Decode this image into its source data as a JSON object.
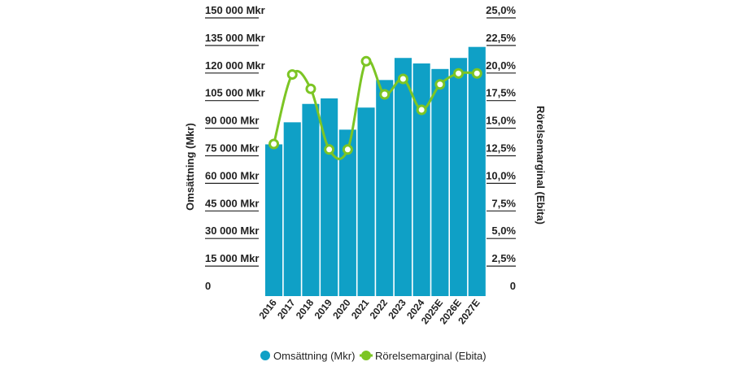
{
  "chart_data": {
    "type": "bar",
    "title": "",
    "categories": [
      "2016",
      "2017",
      "2018",
      "2019",
      "2020",
      "2021",
      "2022",
      "2023",
      "2024",
      "2025E",
      "2026E",
      "2027E"
    ],
    "series": [
      {
        "name": "Omsättning (Mkr)",
        "type": "bar",
        "axis": "left",
        "color": "#0fa0c6",
        "values": [
          79000,
          91000,
          101000,
          104000,
          87000,
          99000,
          114000,
          126000,
          123000,
          120000,
          126000,
          132000
        ]
      },
      {
        "name": "Rörelsemarginal (Ebita)",
        "type": "line",
        "axis": "right",
        "color": "#7cc524",
        "values": [
          13.2,
          19.5,
          18.2,
          12.7,
          12.7,
          20.7,
          17.7,
          19.1,
          16.3,
          18.6,
          19.6,
          19.6
        ]
      }
    ],
    "ylabel": "Omsättning (Mkr)",
    "y2label": "Rörelsemarginal (Ebita)",
    "ylim": [
      0,
      150000
    ],
    "y2lim": [
      0,
      25
    ],
    "yticks": [
      "0",
      "15 000 Mkr",
      "30 000 Mkr",
      "45 000 Mkr",
      "60 000 Mkr",
      "75 000 Mkr",
      "90 000 Mkr",
      "105 000 Mkr",
      "120 000 Mkr",
      "135 000 Mkr",
      "150 000 Mkr"
    ],
    "y2ticks": [
      "0",
      "2,5%",
      "5,0%",
      "7,5%",
      "10,0%",
      "12,5%",
      "15,0%",
      "17,5%",
      "20,0%",
      "22,5%",
      "25,0%"
    ],
    "grid": true,
    "legend_position": "bottom-center"
  }
}
